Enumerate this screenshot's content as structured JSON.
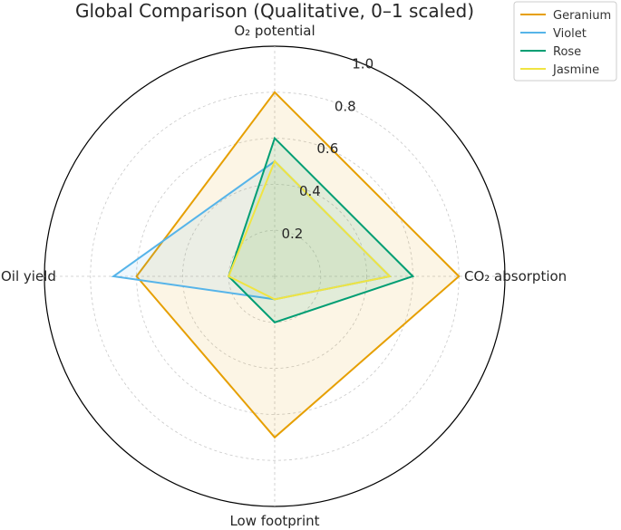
{
  "chart_data": {
    "type": "radar",
    "title": "Global Comparison (Qualitative, 0–1 scaled)",
    "axes": [
      "O₂ potential",
      "CO₂ absorption",
      "Low footprint",
      "Oil yield"
    ],
    "rlim": [
      0,
      1.0
    ],
    "rticks": [
      0.2,
      0.4,
      0.6,
      0.8,
      1.0
    ],
    "rtick_labels": [
      "0.2",
      "0.4",
      "0.6",
      "0.8",
      "1.0"
    ],
    "grid": true,
    "legend_position": "top-right",
    "series": [
      {
        "name": "Geranium",
        "color": "#E69F00",
        "values": [
          0.8,
          0.8,
          0.7,
          0.6
        ],
        "filled": true
      },
      {
        "name": "Violet",
        "color": "#56B4E9",
        "values": [
          0.5,
          0.5,
          0.1,
          0.7
        ],
        "filled": true
      },
      {
        "name": "Rose",
        "color": "#009E73",
        "values": [
          0.6,
          0.6,
          0.2,
          0.2
        ],
        "filled": true
      },
      {
        "name": "Jasmine",
        "color": "#F0E442",
        "values": [
          0.5,
          0.5,
          0.1,
          0.2
        ],
        "filled": true
      }
    ]
  }
}
